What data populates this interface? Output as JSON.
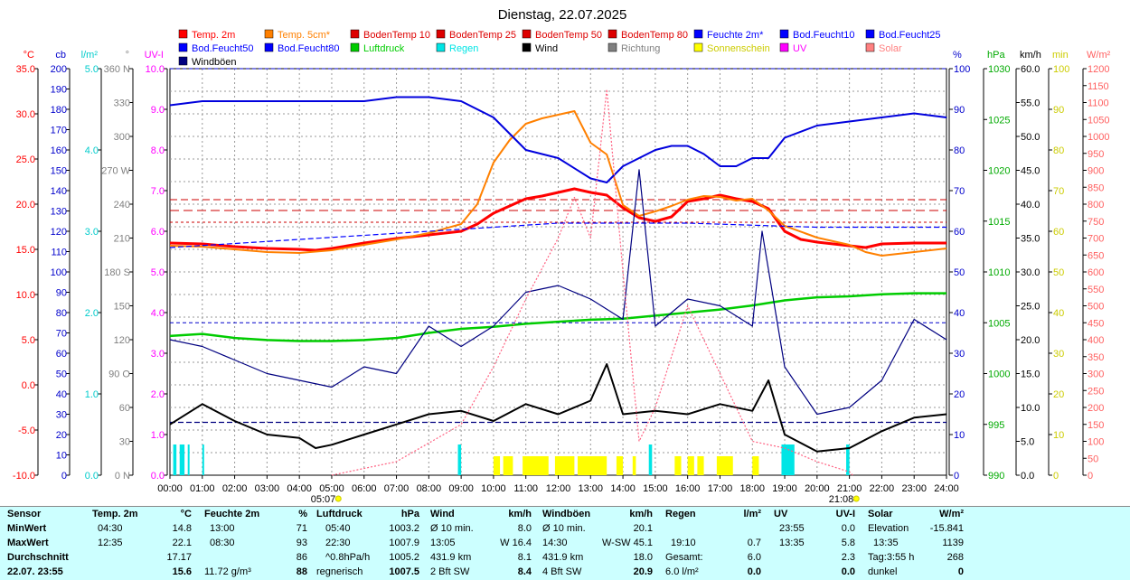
{
  "chart_data": {
    "type": "line",
    "title": "Dienstag, 22.07.2025",
    "x_unit": "hour",
    "x_range": [
      0,
      24
    ],
    "x_ticks": [
      "00:00",
      "01:00",
      "02:00",
      "03:00",
      "04:00",
      "05:00",
      "06:00",
      "07:00",
      "08:00",
      "09:00",
      "10:00",
      "11:00",
      "12:00",
      "13:00",
      "14:00",
      "15:00",
      "16:00",
      "17:00",
      "18:00",
      "19:00",
      "20:00",
      "21:00",
      "22:00",
      "23:00",
      "24:00"
    ],
    "sunrise": "05:07",
    "sunset": "21:08",
    "sunrise_h": 5.12,
    "sunset_h": 21.13,
    "legend": [
      {
        "label": "Temp. 2m",
        "color": "#ff0000"
      },
      {
        "label": "Temp. 5cm*",
        "color": "#ff8000"
      },
      {
        "label": "BodenTemp 10",
        "color": "#dd0000"
      },
      {
        "label": "BodenTemp 25",
        "color": "#dd0000"
      },
      {
        "label": "BodenTemp 50",
        "color": "#dd0000"
      },
      {
        "label": "BodenTemp 80",
        "color": "#dd0000"
      },
      {
        "label": "Feuchte 2m*",
        "color": "#0000ff"
      },
      {
        "label": "Bod.Feucht10",
        "color": "#0000ff"
      },
      {
        "label": "Bod.Feucht25",
        "color": "#0000ff"
      },
      {
        "label": "Bod.Feucht50",
        "color": "#0000ff"
      },
      {
        "label": "Bod.Feucht80",
        "color": "#0000ff"
      },
      {
        "label": "Luftdruck",
        "color": "#00cc00"
      },
      {
        "label": "Regen",
        "color": "#00e5e5"
      },
      {
        "label": "Wind",
        "color": "#000000"
      },
      {
        "label": "Richtung",
        "color": "#808080"
      },
      {
        "label": "Sonnenschein",
        "color": "#ffff00"
      },
      {
        "label": "UV",
        "color": "#ff00ff"
      },
      {
        "label": "Solar",
        "color": "#ff8080"
      },
      {
        "label": "Windböen",
        "color": "#000080"
      }
    ],
    "left_axes": [
      {
        "unit": "°C",
        "color": "#ff0000",
        "ticks": [
          "35.0",
          "30.0",
          "25.0",
          "20.0",
          "15.0",
          "10.0",
          "5.0",
          "0.0",
          "-5.0",
          "-10.0"
        ]
      },
      {
        "unit": "cb",
        "color": "#0000cc",
        "ticks": [
          "200",
          "190",
          "180",
          "170",
          "160",
          "150",
          "140",
          "130",
          "120",
          "110",
          "100",
          "90",
          "80",
          "70",
          "60",
          "50",
          "40",
          "30",
          "20",
          "10",
          "0"
        ]
      },
      {
        "unit": "l/m²",
        "color": "#00cccc",
        "ticks": [
          "5.0",
          "4.0",
          "3.0",
          "2.0",
          "1.0",
          "0.0"
        ]
      },
      {
        "unit": "°",
        "color": "#808080",
        "ticks": [
          "360 N",
          "330",
          "300",
          "270 W",
          "240",
          "210",
          "180 S",
          "150",
          "120",
          "90 O",
          "60",
          "30",
          "0 N"
        ]
      },
      {
        "unit": "UV-I",
        "color": "#ff00ff",
        "ticks": [
          "10.0",
          "9.0",
          "8.0",
          "7.0",
          "6.0",
          "5.0",
          "4.0",
          "3.0",
          "2.0",
          "1.0",
          "0.0"
        ]
      }
    ],
    "right_axes": [
      {
        "unit": "%",
        "color": "#0000cc",
        "ticks": [
          "100",
          "90",
          "80",
          "70",
          "60",
          "50",
          "40",
          "30",
          "20",
          "10",
          "0"
        ]
      },
      {
        "unit": "hPa",
        "color": "#00aa00",
        "ticks": [
          "1030",
          "1025",
          "1020",
          "1015",
          "1010",
          "1005",
          "1000",
          "995",
          "990"
        ]
      },
      {
        "unit": "km/h",
        "color": "#000000",
        "ticks": [
          "60.0",
          "55.0",
          "50.0",
          "45.0",
          "40.0",
          "35.0",
          "30.0",
          "25.0",
          "20.0",
          "15.0",
          "10.0",
          "5.0",
          "0.0"
        ]
      },
      {
        "unit": "min",
        "color": "#cccc00",
        "ticks": [
          "100",
          "90",
          "80",
          "70",
          "60",
          "50",
          "40",
          "30",
          "20",
          "10",
          "0"
        ]
      },
      {
        "unit": "W/m²",
        "color": "#ff6060",
        "ticks": [
          "1200",
          "1150",
          "1100",
          "1050",
          "1000",
          "950",
          "900",
          "850",
          "800",
          "750",
          "700",
          "650",
          "600",
          "550",
          "500",
          "450",
          "400",
          "350",
          "300",
          "250",
          "200",
          "150",
          "100",
          "50",
          "0"
        ]
      }
    ],
    "series": [
      {
        "name": "Temp. 2m",
        "axis": "°C",
        "color": "#ff0000",
        "x": [
          0,
          1,
          2,
          3,
          4,
          4.5,
          5,
          6,
          7,
          8,
          9,
          9.5,
          10,
          10.5,
          11,
          11.5,
          12,
          12.5,
          13,
          13.5,
          14,
          14.5,
          15,
          15.5,
          16,
          16.5,
          17,
          17.5,
          18,
          18.5,
          19,
          19.5,
          20,
          21,
          21.5,
          22,
          23,
          24
        ],
        "y": [
          15.7,
          15.6,
          15.3,
          15.1,
          15.0,
          14.9,
          15.1,
          15.7,
          16.2,
          16.6,
          17.0,
          17.8,
          19.0,
          19.8,
          20.6,
          20.9,
          21.3,
          21.7,
          21.3,
          21.0,
          19.6,
          18.5,
          18.1,
          18.6,
          20.3,
          20.6,
          21.0,
          20.6,
          20.3,
          19.5,
          17.0,
          16.1,
          15.8,
          15.4,
          15.2,
          15.6,
          15.7,
          15.7
        ]
      },
      {
        "name": "Temp. 5cm*",
        "axis": "°C",
        "color": "#ff8000",
        "x": [
          0,
          1,
          2,
          3,
          4,
          5,
          6,
          7,
          8,
          9,
          9.5,
          10,
          10.5,
          11,
          11.5,
          12,
          12.5,
          13,
          13.5,
          14,
          14.5,
          15,
          15.5,
          16,
          16.5,
          17,
          17.5,
          18,
          18.5,
          19,
          20,
          21,
          21.5,
          22,
          23,
          24
        ],
        "y": [
          15.4,
          15.3,
          15.0,
          14.7,
          14.6,
          14.9,
          15.5,
          16.1,
          16.8,
          17.8,
          20.0,
          24.6,
          27.1,
          28.9,
          29.5,
          29.9,
          30.3,
          26.8,
          25.5,
          19.9,
          18.7,
          19.2,
          19.8,
          20.5,
          20.9,
          20.8,
          20.4,
          20.6,
          19.3,
          17.6,
          16.3,
          15.5,
          14.7,
          14.3,
          14.7,
          15.1
        ]
      },
      {
        "name": "Feuchte 2m*",
        "axis": "%",
        "color": "#0000dd",
        "x": [
          0,
          1,
          2,
          3,
          4,
          5,
          6,
          7,
          8,
          9,
          10,
          11,
          12,
          13,
          13.5,
          14,
          14.5,
          15,
          15.5,
          16,
          16.5,
          17,
          17.5,
          18,
          18.5,
          19,
          20,
          21,
          22,
          23,
          24
        ],
        "y": [
          91,
          92,
          92,
          92,
          92,
          92,
          92,
          93,
          93,
          92,
          88,
          80,
          78,
          73,
          72,
          76,
          78,
          80,
          81,
          81,
          79,
          76,
          76,
          78,
          78,
          83,
          86,
          87,
          88,
          89,
          88
        ]
      },
      {
        "name": "Bod.Feucht10",
        "axis": "%",
        "color": "#0000ff",
        "x": [
          0,
          4,
          8,
          12,
          16,
          20,
          24
        ],
        "y": [
          56,
          58,
          60,
          62,
          62,
          61,
          61
        ]
      },
      {
        "name": "Bod.Feucht25",
        "axis": "%",
        "color": "#000080",
        "x": [
          0,
          24
        ],
        "y": [
          13,
          13
        ]
      },
      {
        "name": "Luftdruck",
        "axis": "hPa",
        "color": "#00cc00",
        "x": [
          0,
          1,
          2,
          3,
          4,
          5,
          6,
          7,
          8,
          9,
          10,
          11,
          12,
          13,
          14,
          15,
          16,
          17,
          18,
          19,
          20,
          21,
          22,
          23,
          24
        ],
        "y": [
          1003.7,
          1003.9,
          1003.5,
          1003.3,
          1003.2,
          1003.2,
          1003.3,
          1003.5,
          1004.0,
          1004.4,
          1004.6,
          1004.9,
          1005.1,
          1005.3,
          1005.4,
          1005.7,
          1006.0,
          1006.3,
          1006.7,
          1007.2,
          1007.5,
          1007.6,
          1007.8,
          1007.9,
          1007.9
        ]
      },
      {
        "name": "Wind",
        "axis": "km/h",
        "color": "#000000",
        "x": [
          0,
          1,
          2,
          3,
          4,
          4.5,
          5,
          6,
          7,
          8,
          9,
          10,
          11,
          12,
          13,
          13.5,
          14,
          15,
          16,
          17,
          18,
          18.5,
          19,
          20,
          21,
          22,
          23,
          24
        ],
        "y": [
          7.5,
          10.5,
          8.0,
          6.0,
          5.5,
          4.0,
          4.5,
          6.0,
          7.5,
          9.0,
          9.5,
          8.0,
          10.5,
          9.0,
          11.0,
          16.4,
          9.0,
          9.5,
          9.0,
          10.5,
          9.5,
          14.0,
          6.0,
          3.5,
          4.0,
          6.5,
          8.5,
          9.0
        ]
      },
      {
        "name": "Windböen",
        "axis": "km/h",
        "color": "#000080",
        "x": [
          0,
          1,
          2,
          3,
          4,
          5,
          6,
          7,
          8,
          9,
          10,
          11,
          12,
          13,
          14,
          14.5,
          15,
          16,
          17,
          18,
          18.3,
          19,
          20,
          21,
          22,
          23,
          24
        ],
        "y": [
          20,
          19,
          17,
          15,
          14,
          13,
          16,
          15,
          22,
          19,
          22,
          27,
          28,
          26,
          23,
          45.1,
          22,
          26,
          25,
          22,
          36,
          16,
          9,
          10,
          14,
          23,
          20
        ]
      },
      {
        "name": "Solar",
        "axis": "W/m²",
        "color": "#ff6080",
        "x": [
          5,
          7,
          9,
          10,
          11,
          12,
          12.5,
          13,
          13.5,
          14,
          14.5,
          15,
          16,
          17,
          18,
          19,
          20,
          21,
          21.1
        ],
        "y": [
          0,
          40,
          150,
          320,
          520,
          700,
          820,
          700,
          1139,
          600,
          100,
          200,
          500,
          300,
          100,
          80,
          40,
          10,
          0
        ]
      }
    ],
    "sunshine_bars": [
      [
        10.0,
        10.2
      ],
      [
        10.3,
        10.6
      ],
      [
        10.9,
        11.7
      ],
      [
        11.9,
        12.5
      ],
      [
        12.6,
        13.5
      ],
      [
        13.8,
        14.0
      ],
      [
        14.3,
        14.4
      ],
      [
        15.6,
        15.8
      ],
      [
        16.0,
        16.2
      ],
      [
        16.3,
        16.5
      ],
      [
        16.9,
        17.4
      ],
      [
        18.0,
        18.2
      ]
    ],
    "rain_bars": [
      [
        0.1,
        0.2
      ],
      [
        0.3,
        0.45
      ],
      [
        0.55,
        0.6
      ],
      [
        1.0,
        1.05
      ],
      [
        8.9,
        9.0
      ],
      [
        14.8,
        14.9
      ],
      [
        18.9,
        19.3
      ],
      [
        20.9,
        21.0
      ]
    ]
  },
  "stats": {
    "header": [
      "Sensor",
      "Temp. 2m",
      "°C",
      "Feuchte 2m",
      "%",
      "Luftdruck",
      "hPa",
      "Wind",
      "km/h",
      "Windböen",
      "km/h",
      "Regen",
      "l/m²",
      "UV",
      "UV-I",
      "Solar",
      "W/m²"
    ],
    "rows": [
      {
        "label": "MinWert",
        "c": [
          "04:30",
          "14.8",
          "13:00",
          "71",
          "05:40",
          "1003.2",
          "Ø 10 min.",
          "8.0",
          "Ø 10 min.",
          "20.1",
          "",
          "",
          "23:55",
          "0.0",
          "Elevation",
          "-15.841"
        ]
      },
      {
        "label": "MaxWert",
        "c": [
          "12:35",
          "22.1",
          "08:30",
          "93",
          "22:30",
          "1007.9",
          "13:05",
          "W 16.4",
          "14:30",
          "W-SW 45.1",
          "19:10",
          "0.7",
          "13:35",
          "5.8",
          "13:35",
          "1139"
        ]
      },
      {
        "label": "Durchschnitt",
        "c": [
          "",
          "17.17",
          "",
          "86",
          "^0.8hPa/h",
          "1005.2",
          "431.9 km",
          "8.1",
          "431.9 km",
          "18.0",
          "Gesamt:",
          "6.0",
          "",
          "2.3",
          "Tag:3:55 h",
          "268"
        ]
      },
      {
        "label": "22.07. 23:55",
        "c": [
          "",
          "15.6",
          "11.72 g/m³",
          "88",
          "regnerisch",
          "1007.5",
          "2 Bft SW",
          "8.4",
          "4 Bft SW",
          "20.9",
          "6.0 l/m²",
          "0.0",
          "",
          "0.0",
          "dunkel",
          "0"
        ]
      }
    ]
  }
}
